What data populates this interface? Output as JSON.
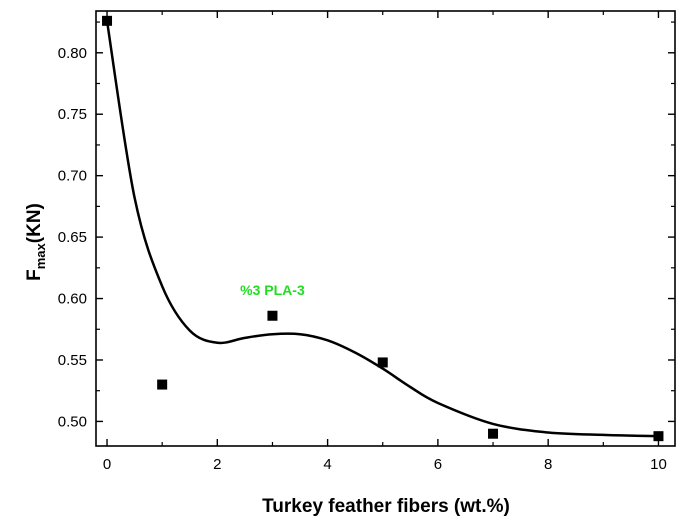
{
  "chart_data": {
    "type": "scatter",
    "xlabel": "Turkey feather fibers (wt.%)",
    "ylabel_main": "F",
    "ylabel_sub": "max",
    "ylabel_unit": "(KN)",
    "xlim": [
      -0.2,
      10.3
    ],
    "ylim": [
      0.48,
      0.834
    ],
    "x_ticks": [
      0,
      2,
      4,
      6,
      8,
      10
    ],
    "x_tick_labels": [
      "0",
      "2",
      "4",
      "6",
      "8",
      "10"
    ],
    "y_ticks": [
      0.5,
      0.55,
      0.6,
      0.65,
      0.7,
      0.75,
      0.8
    ],
    "y_tick_labels": [
      "0.50",
      "0.55",
      "0.60",
      "0.65",
      "0.70",
      "0.75",
      "0.80"
    ],
    "grid": false,
    "legend": "none",
    "series": [
      {
        "type": "scatter",
        "marker": "square",
        "color": "#000000",
        "x": [
          0,
          1,
          3,
          5,
          7,
          10
        ],
        "y": [
          0.826,
          0.53,
          0.586,
          0.548,
          0.49,
          0.488
        ]
      },
      {
        "type": "line",
        "style": "smooth",
        "color": "#000000",
        "x": [
          0,
          0.5,
          1,
          1.5,
          2,
          2.5,
          3,
          3.5,
          4,
          4.5,
          5,
          5.5,
          6,
          7,
          8,
          9,
          10
        ],
        "y": [
          0.826,
          0.682,
          0.61,
          0.574,
          0.564,
          0.568,
          0.571,
          0.571,
          0.566,
          0.556,
          0.543,
          0.528,
          0.515,
          0.498,
          0.491,
          0.489,
          0.488
        ]
      }
    ],
    "annotations": [
      {
        "text": "%3 PLA-3",
        "x": 3,
        "y": 0.603,
        "color": "#22dd22"
      }
    ]
  }
}
